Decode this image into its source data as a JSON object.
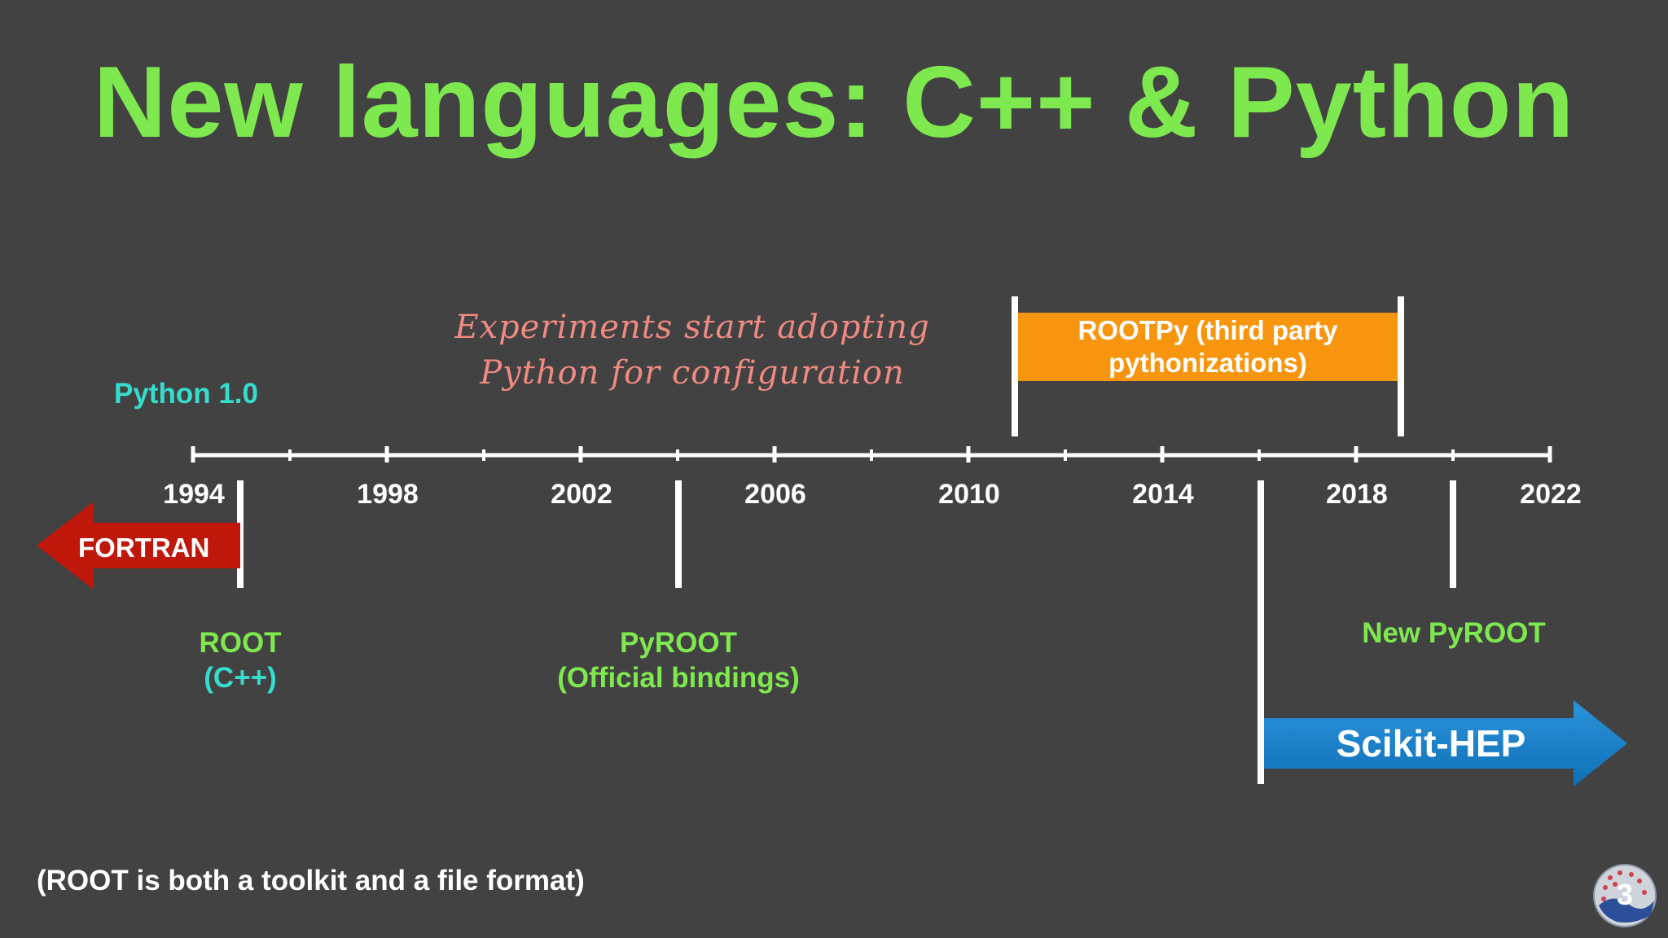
{
  "title": "New languages: C++ & Python",
  "timeline": {
    "years": [
      "1994",
      "1998",
      "2002",
      "2006",
      "2010",
      "2014",
      "2018",
      "2022"
    ]
  },
  "events": {
    "python10": "Python 1.0",
    "experiments": [
      "Experiments start adopting",
      "Python for configuration"
    ],
    "rootpy": [
      "ROOTPy (third party",
      "pythonizations)"
    ],
    "fortran": "FORTRAN",
    "root": [
      "ROOT",
      "(C++)"
    ],
    "pyroot": [
      "PyROOT",
      "(Official bindings)"
    ],
    "new_pyroot": "New PyROOT",
    "scikit_hep": "Scikit-HEP"
  },
  "footnote": "(ROOT is both a toolkit and a file format)",
  "page_number": "3",
  "colors": {
    "background": "#424242",
    "title": "#7ee84f",
    "python_label": "#36dccd",
    "handwriting": "#ef8a82",
    "rootpy_box": "#f7960e",
    "fortran_arrow": "#c0170b",
    "scikit_arrow": "#1a7fc8"
  }
}
